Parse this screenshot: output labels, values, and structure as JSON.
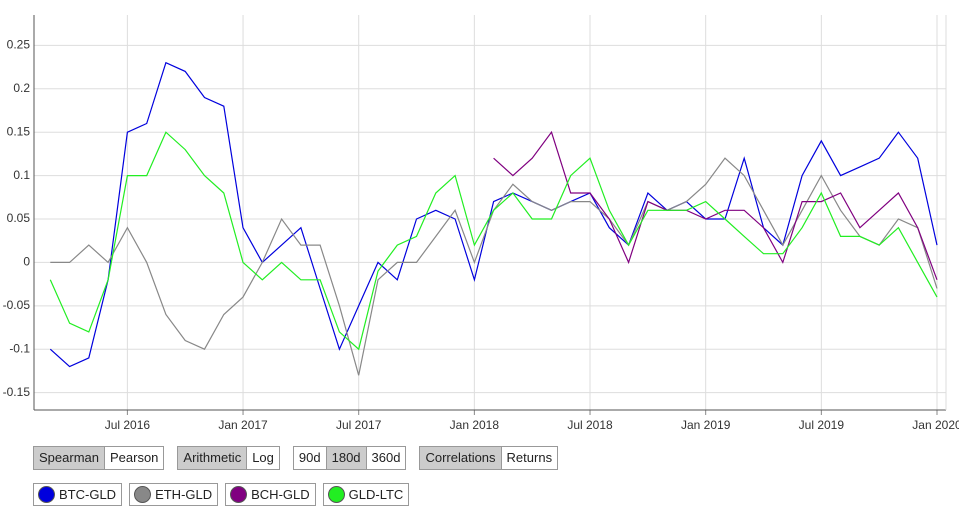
{
  "chart_data": {
    "type": "line",
    "x": [
      "2016-03",
      "2016-04",
      "2016-05",
      "2016-06",
      "2016-07",
      "2016-08",
      "2016-09",
      "2016-10",
      "2016-11",
      "2016-12",
      "2017-01",
      "2017-02",
      "2017-03",
      "2017-04",
      "2017-05",
      "2017-06",
      "2017-07",
      "2017-08",
      "2017-09",
      "2017-10",
      "2017-11",
      "2017-12",
      "2018-01",
      "2018-02",
      "2018-03",
      "2018-04",
      "2018-05",
      "2018-06",
      "2018-07",
      "2018-08",
      "2018-09",
      "2018-10",
      "2018-11",
      "2018-12",
      "2019-01",
      "2019-02",
      "2019-03",
      "2019-04",
      "2019-05",
      "2019-06",
      "2019-07",
      "2019-08",
      "2019-09",
      "2019-10",
      "2019-11",
      "2019-12",
      "2020-01"
    ],
    "xlim": [
      "2016-02",
      "2020-01"
    ],
    "xticks": [
      {
        "value": "2016-07",
        "label": "Jul 2016"
      },
      {
        "value": "2017-01",
        "label": "Jan 2017"
      },
      {
        "value": "2017-07",
        "label": "Jul 2017"
      },
      {
        "value": "2018-01",
        "label": "Jan 2018"
      },
      {
        "value": "2018-07",
        "label": "Jul 2018"
      },
      {
        "value": "2019-01",
        "label": "Jan 2019"
      },
      {
        "value": "2019-07",
        "label": "Jul 2019"
      },
      {
        "value": "2020-01",
        "label": "Jan 2020"
      }
    ],
    "ylim": [
      -0.17,
      0.285
    ],
    "yticks": [
      -0.15,
      -0.1,
      -0.05,
      0,
      0.05,
      0.1,
      0.15,
      0.2,
      0.25
    ],
    "grid": true,
    "series": [
      {
        "name": "BTC-GLD",
        "color": "#0000dd",
        "values": [
          -0.1,
          -0.12,
          -0.11,
          -0.02,
          0.15,
          0.16,
          0.23,
          0.22,
          0.19,
          0.18,
          0.04,
          0.0,
          0.02,
          0.04,
          -0.03,
          -0.1,
          -0.05,
          0.0,
          -0.02,
          0.05,
          0.06,
          0.05,
          -0.02,
          0.07,
          0.08,
          0.07,
          0.06,
          0.07,
          0.08,
          0.04,
          0.02,
          0.08,
          0.06,
          0.07,
          0.05,
          0.05,
          0.12,
          0.04,
          0.02,
          0.1,
          0.14,
          0.1,
          0.11,
          0.12,
          0.15,
          0.12,
          0.02
        ]
      },
      {
        "name": "ETH-GLD",
        "color": "#888888",
        "values": [
          0.0,
          0.0,
          0.02,
          0.0,
          0.04,
          0.0,
          -0.06,
          -0.09,
          -0.1,
          -0.06,
          -0.04,
          0.0,
          0.05,
          0.02,
          0.02,
          -0.05,
          -0.13,
          -0.02,
          0.0,
          0.0,
          0.03,
          0.06,
          0.0,
          0.06,
          0.09,
          0.07,
          0.06,
          0.07,
          0.07,
          0.05,
          0.02,
          0.07,
          0.06,
          0.07,
          0.09,
          0.12,
          0.1,
          0.06,
          0.02,
          0.06,
          0.1,
          0.06,
          0.03,
          0.02,
          0.05,
          0.04,
          -0.03
        ]
      },
      {
        "name": "BCH-GLD",
        "color": "#800080",
        "values": [
          null,
          null,
          null,
          null,
          null,
          null,
          null,
          null,
          null,
          null,
          null,
          null,
          null,
          null,
          null,
          null,
          null,
          null,
          null,
          null,
          null,
          null,
          null,
          0.12,
          0.1,
          0.12,
          0.15,
          0.08,
          0.08,
          0.05,
          0.0,
          0.07,
          0.06,
          0.06,
          0.05,
          0.06,
          0.06,
          0.04,
          0.0,
          0.07,
          0.07,
          0.08,
          0.04,
          0.06,
          0.08,
          0.04,
          -0.02
        ]
      },
      {
        "name": "GLD-LTC",
        "color": "#22ee22",
        "values": [
          -0.02,
          -0.07,
          -0.08,
          -0.02,
          0.1,
          0.1,
          0.15,
          0.13,
          0.1,
          0.08,
          0.0,
          -0.02,
          0.0,
          -0.02,
          -0.02,
          -0.08,
          -0.1,
          -0.01,
          0.02,
          0.03,
          0.08,
          0.1,
          0.02,
          0.06,
          0.08,
          0.05,
          0.05,
          0.1,
          0.12,
          0.06,
          0.02,
          0.06,
          0.06,
          0.06,
          0.07,
          0.05,
          0.03,
          0.01,
          0.01,
          0.04,
          0.08,
          0.03,
          0.03,
          0.02,
          0.04,
          0.0,
          -0.04
        ]
      }
    ]
  },
  "controls": [
    {
      "buttons": [
        "Spearman",
        "Pearson"
      ],
      "active": 0
    },
    {
      "buttons": [
        "Arithmetic",
        "Log"
      ],
      "active": 0
    },
    {
      "buttons": [
        "90d",
        "180d",
        "360d"
      ],
      "active": 1
    },
    {
      "buttons": [
        "Correlations",
        "Returns"
      ],
      "active": 0
    }
  ]
}
